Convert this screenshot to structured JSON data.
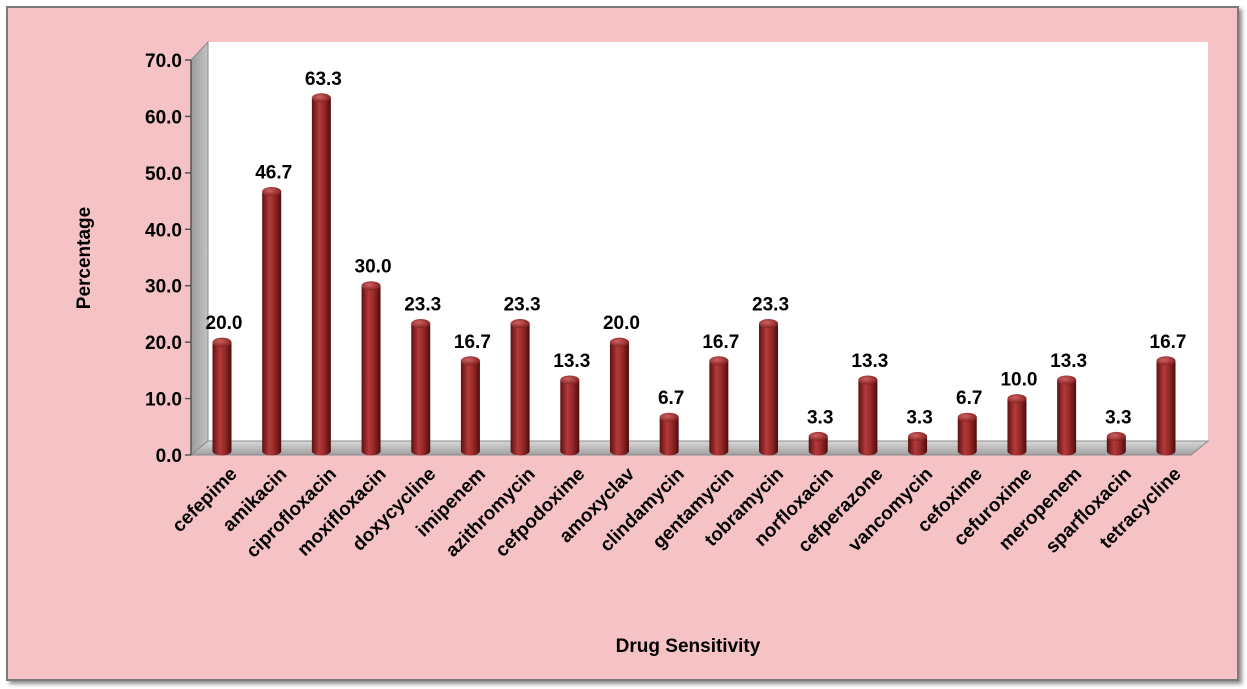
{
  "colors": {
    "background": "#f5c2c6",
    "plot_area": "#ffffff",
    "bar": "#8e2323",
    "wall": "#a6a6a6"
  },
  "chart_data": {
    "type": "bar",
    "title": "",
    "xlabel": "Drug Sensitivity",
    "ylabel": "Percentage",
    "ylim": [
      0,
      70
    ],
    "ytick_step": 10,
    "ytick_labels": [
      "0.0",
      "10.0",
      "20.0",
      "30.0",
      "40.0",
      "50.0",
      "60.0",
      "70.0"
    ],
    "grid": false,
    "legend": "none",
    "categories": [
      "cefepime",
      "amikacin",
      "ciprofloxacin",
      "moxifloxacin",
      "doxycycline",
      "imipenem",
      "azithromycin",
      "cefpodoxime",
      "amoxyclav",
      "clindamycin",
      "gentamycin",
      "tobramycin",
      "norfloxacin",
      "cefperazone",
      "vancomycin",
      "cefoxime",
      "cefuroxime",
      "meropenem",
      "sparfloxacin",
      "tetracycline"
    ],
    "values": [
      20.0,
      46.7,
      63.3,
      30.0,
      23.3,
      16.7,
      23.3,
      13.3,
      20.0,
      6.7,
      16.7,
      23.3,
      3.3,
      13.3,
      3.3,
      6.7,
      10.0,
      13.3,
      3.3,
      16.7
    ],
    "data_labels": [
      "20.0",
      "46.7",
      "63.3",
      "30.0",
      "23.3",
      "16.7",
      "23.3",
      "13.3",
      "20.0",
      "6.7",
      "16.7",
      "23.3",
      "3.3",
      "13.3",
      "3.3",
      "6.7",
      "10.0",
      "13.3",
      "3.3",
      "16.7"
    ]
  }
}
